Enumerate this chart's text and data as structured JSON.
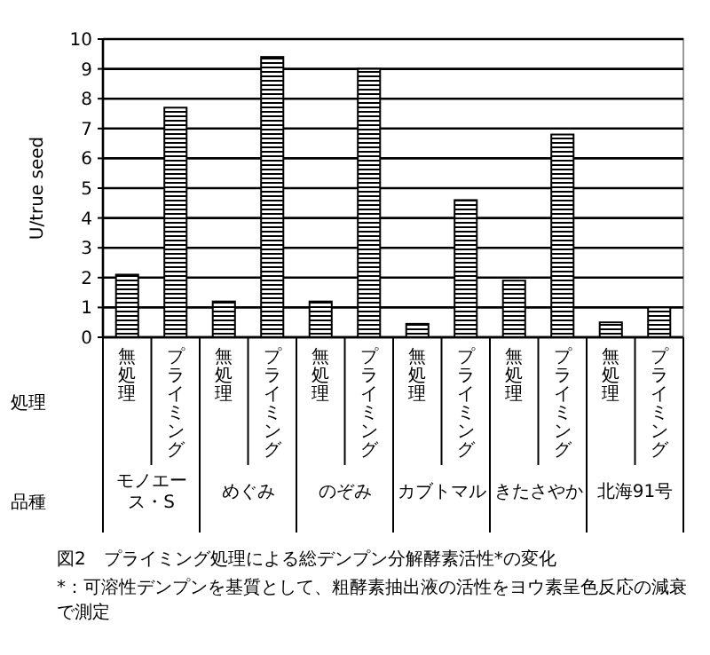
{
  "chart_data": {
    "type": "bar",
    "ylabel": "U/true seed",
    "categories": [
      "無処理",
      "プライミング",
      "無処理",
      "プライミング",
      "無処理",
      "プライミング",
      "無処理",
      "プライミング",
      "無処理",
      "プライミング",
      "無処理",
      "プライミング"
    ],
    "values": [
      2.1,
      7.7,
      1.2,
      9.4,
      1.2,
      9.0,
      0.45,
      4.6,
      1.9,
      6.8,
      0.5,
      1.0
    ],
    "color": "#000000",
    "ylim": [
      0,
      10
    ],
    "yticks": [
      0,
      1,
      2,
      3,
      4,
      5,
      6,
      7,
      8,
      9,
      10
    ],
    "grid": "y",
    "annotations": [
      "処理",
      "品種",
      "モノエース・S",
      "めぐみ",
      "のぞみ",
      "カブトマル",
      "きたさやか",
      "北海91号",
      "図2　プライミング処理による総デンプン分解酵素活性*の変化",
      "*：可溶性デンプンを基質として、粗酵素抽出液の活性をヨウ素呈色反応の減衰で測定"
    ]
  }
}
